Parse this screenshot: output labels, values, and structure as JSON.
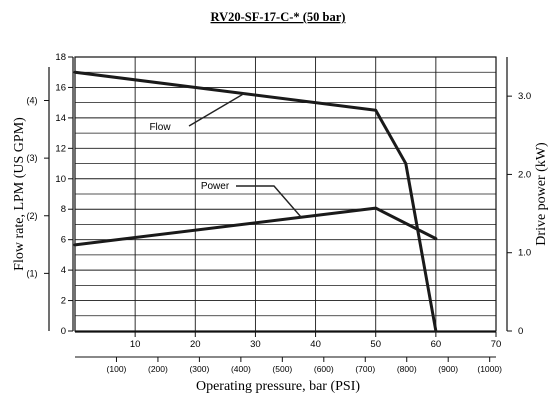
{
  "chart_data": {
    "type": "line",
    "title": "RV20-SF-17-C-* (50 bar)",
    "xlabel": "Operating pressure, bar (PSI)",
    "ylabel_left": "Flow rate, LPM (US GPM)",
    "ylabel_right": "Drive power (kW)",
    "xlim": [
      0,
      70
    ],
    "ylim_left": [
      0,
      18
    ],
    "ylim_right": [
      0,
      3.5
    ],
    "grid": true,
    "x_ticks": [
      "10",
      "20",
      "30",
      "40",
      "50",
      "60",
      "70"
    ],
    "x_secondary_ticks": [
      "(100)",
      "(200)",
      "(300)",
      "(400)",
      "(500)",
      "(600)",
      "(700)",
      "(800)",
      "(900)",
      "(1000)"
    ],
    "y_left_ticks": [
      "0",
      "2",
      "4",
      "6",
      "8",
      "10",
      "12",
      "14",
      "16",
      "18"
    ],
    "y_left_secondary_ticks": [
      "(1)",
      "(2)",
      "(3)",
      "(4)"
    ],
    "y_right_ticks": [
      "0",
      "1.0",
      "2.0",
      "3.0"
    ],
    "series": [
      {
        "name": "Flow",
        "axis": "left",
        "points": [
          {
            "x": 0,
            "y": 17.0
          },
          {
            "x": 50,
            "y": 14.5
          },
          {
            "x": 55,
            "y": 11.0
          },
          {
            "x": 60,
            "y": 0.0
          }
        ]
      },
      {
        "name": "Power",
        "axis": "right",
        "points": [
          {
            "x": 0,
            "y": 1.1
          },
          {
            "x": 50,
            "y": 1.57
          },
          {
            "x": 60,
            "y": 1.18
          }
        ]
      }
    ],
    "annotations": [
      "Flow",
      "Power"
    ]
  }
}
